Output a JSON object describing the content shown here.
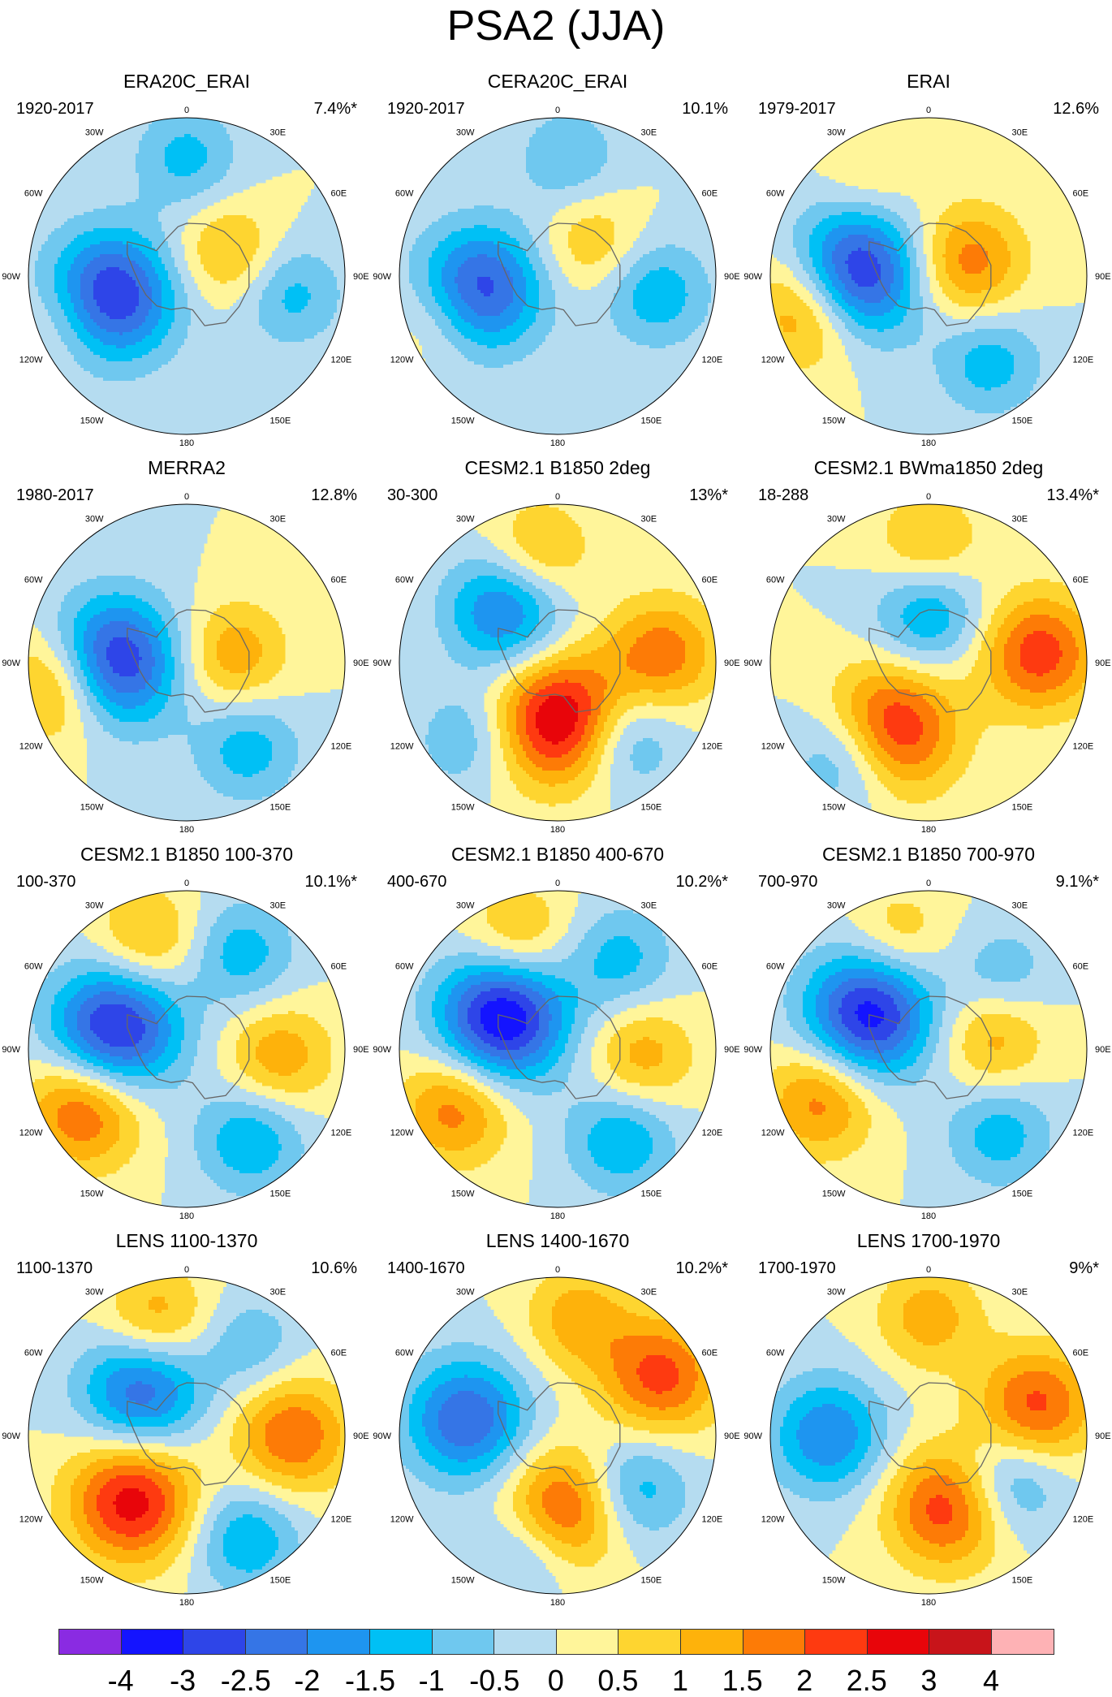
{
  "title": "PSA2 (JJA)",
  "panels": [
    {
      "title": "ERA20C_ERAI",
      "period": "1920-2017",
      "variance": "7.4%*",
      "anomalies": [
        {
          "lat": -60,
          "lon": -105,
          "v": -3.2
        },
        {
          "lat": -72,
          "lon": 60,
          "v": 1.2
        },
        {
          "lat": -50,
          "lon": 100,
          "v": -1.2
        },
        {
          "lat": -45,
          "lon": 0,
          "v": -1.2
        },
        {
          "lat": -42,
          "lon": -110,
          "v": 0.8
        }
      ]
    },
    {
      "title": "CERA20C_ERAI",
      "period": "1920-2017",
      "variance": "10.1%",
      "anomalies": [
        {
          "lat": -60,
          "lon": -100,
          "v": -2.8
        },
        {
          "lat": -72,
          "lon": 45,
          "v": 1.0
        },
        {
          "lat": -52,
          "lon": 100,
          "v": -1.4
        },
        {
          "lat": -45,
          "lon": 5,
          "v": -1.0
        },
        {
          "lat": -42,
          "lon": -110,
          "v": 0.8
        }
      ]
    },
    {
      "title": "ERAI",
      "period": "1979-2017",
      "variance": "12.6%",
      "anomalies": [
        {
          "lat": -62,
          "lon": -90,
          "v": -3.6
        },
        {
          "lat": -74,
          "lon": 70,
          "v": 1.8
        },
        {
          "lat": -44,
          "lon": -105,
          "v": 2.2
        },
        {
          "lat": -50,
          "lon": 145,
          "v": -1.3
        },
        {
          "lat": -45,
          "lon": -30,
          "v": 0.6
        }
      ]
    },
    {
      "title": "MERRA2",
      "period": "1980-2017",
      "variance": "12.8%",
      "anomalies": [
        {
          "lat": -62,
          "lon": -90,
          "v": -3.4
        },
        {
          "lat": -72,
          "lon": 80,
          "v": 1.4
        },
        {
          "lat": -42,
          "lon": -100,
          "v": 2.0
        },
        {
          "lat": -50,
          "lon": 145,
          "v": -1.3
        }
      ]
    },
    {
      "title": "CESM2.1 B1850 2deg",
      "period": "30-300",
      "variance": "13%*",
      "anomalies": [
        {
          "lat": -68,
          "lon": 175,
          "v": 3.3
        },
        {
          "lat": -62,
          "lon": -45,
          "v": -2.2
        },
        {
          "lat": -50,
          "lon": 85,
          "v": 1.8
        },
        {
          "lat": -48,
          "lon": -10,
          "v": 1.3
        },
        {
          "lat": -52,
          "lon": 140,
          "v": -1.5
        },
        {
          "lat": -45,
          "lon": -130,
          "v": -1.0
        }
      ]
    },
    {
      "title": "CESM2.1 BWma1850 2deg",
      "period": "18-288",
      "variance": "13.4%*",
      "anomalies": [
        {
          "lat": -60,
          "lon": -150,
          "v": 3.0
        },
        {
          "lat": -72,
          "lon": 0,
          "v": -1.6
        },
        {
          "lat": -48,
          "lon": 85,
          "v": 2.3
        },
        {
          "lat": -44,
          "lon": -140,
          "v": -1.8
        },
        {
          "lat": -45,
          "lon": 0,
          "v": 1.2
        }
      ]
    },
    {
      "title": "CESM2.1 B1850 100-370",
      "period": "100-370",
      "variance": "10.1%*",
      "anomalies": [
        {
          "lat": -62,
          "lon": -75,
          "v": -3.3
        },
        {
          "lat": -45,
          "lon": -120,
          "v": 2.2
        },
        {
          "lat": -55,
          "lon": 95,
          "v": 1.4
        },
        {
          "lat": -48,
          "lon": 145,
          "v": -1.5
        },
        {
          "lat": -46,
          "lon": -20,
          "v": 1.3
        },
        {
          "lat": -48,
          "lon": 30,
          "v": -1.3
        }
      ]
    },
    {
      "title": "CESM2.1 B1850 400-670",
      "period": "400-670",
      "variance": "10.2%*",
      "anomalies": [
        {
          "lat": -66,
          "lon": -60,
          "v": -3.6
        },
        {
          "lat": -45,
          "lon": -120,
          "v": 1.8
        },
        {
          "lat": -58,
          "lon": 95,
          "v": 1.3
        },
        {
          "lat": -48,
          "lon": 145,
          "v": -1.5
        },
        {
          "lat": -45,
          "lon": -20,
          "v": 1.3
        },
        {
          "lat": -48,
          "lon": 35,
          "v": -1.2
        }
      ]
    },
    {
      "title": "CESM2.1 B1850 700-970",
      "period": "700-970",
      "variance": "9.1%*",
      "anomalies": [
        {
          "lat": -64,
          "lon": -60,
          "v": -3.3
        },
        {
          "lat": -45,
          "lon": -115,
          "v": 1.8
        },
        {
          "lat": -65,
          "lon": 80,
          "v": 1.3
        },
        {
          "lat": -48,
          "lon": 140,
          "v": -1.3
        },
        {
          "lat": -46,
          "lon": -15,
          "v": 1.0
        },
        {
          "lat": -50,
          "lon": 45,
          "v": -0.9
        }
      ]
    },
    {
      "title": "LENS 1100-1370",
      "period": "1100-1370",
      "variance": "10.6%",
      "anomalies": [
        {
          "lat": -58,
          "lon": -140,
          "v": 2.8
        },
        {
          "lat": -66,
          "lon": -45,
          "v": -2.5
        },
        {
          "lat": -50,
          "lon": 90,
          "v": 2.0
        },
        {
          "lat": -45,
          "lon": -15,
          "v": 1.5
        },
        {
          "lat": -45,
          "lon": 150,
          "v": -1.5
        },
        {
          "lat": -48,
          "lon": 35,
          "v": -0.9
        }
      ]
    },
    {
      "title": "LENS 1400-1670",
      "period": "1400-1670",
      "variance": "10.2%*",
      "anomalies": [
        {
          "lat": -62,
          "lon": 175,
          "v": 2.4
        },
        {
          "lat": -55,
          "lon": -80,
          "v": -2.5
        },
        {
          "lat": -45,
          "lon": 60,
          "v": 2.2
        },
        {
          "lat": -55,
          "lon": 125,
          "v": -1.5
        },
        {
          "lat": -45,
          "lon": -165,
          "v": -1.1
        },
        {
          "lat": -45,
          "lon": 10,
          "v": 1.3
        }
      ]
    },
    {
      "title": "LENS 1700-1970",
      "period": "1700-1970",
      "variance": "9%*",
      "anomalies": [
        {
          "lat": -62,
          "lon": 165,
          "v": 2.4
        },
        {
          "lat": -52,
          "lon": -90,
          "v": -2.0
        },
        {
          "lat": -48,
          "lon": 75,
          "v": 2.2
        },
        {
          "lat": -55,
          "lon": 120,
          "v": -1.5
        },
        {
          "lat": -45,
          "lon": 0,
          "v": 1.3
        }
      ]
    }
  ],
  "map": {
    "type": "south-polar-stereographic",
    "lon_labels": [
      "0",
      "30E",
      "60E",
      "90E",
      "120E",
      "150E",
      "180",
      "150W",
      "120W",
      "90W",
      "60W",
      "30W"
    ]
  },
  "colorbar": {
    "tick_labels": [
      "-4",
      "-3",
      "-2.5",
      "-2",
      "-1.5",
      "-1",
      "-0.5",
      "0",
      "0.5",
      "1",
      "1.5",
      "2",
      "2.5",
      "3",
      "4"
    ],
    "thresholds": [
      -4,
      -3,
      -2.5,
      -2,
      -1.5,
      -1,
      -0.5,
      0,
      0.5,
      1,
      1.5,
      2,
      2.5,
      3,
      4
    ],
    "colors": [
      "#8a2be2",
      "#1414ff",
      "#2e45e8",
      "#3575e6",
      "#1e95f0",
      "#00c0f5",
      "#6fc8ef",
      "#b5dcf0",
      "#fff59a",
      "#fed530",
      "#feb20b",
      "#fd7b06",
      "#fe3a10",
      "#e8050a",
      "#c8141a",
      "#feb2b5"
    ]
  }
}
